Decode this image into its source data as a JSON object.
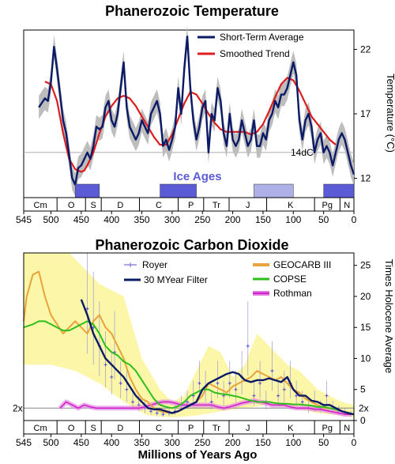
{
  "chart_data": [
    {
      "type": "line",
      "title": "Phanerozoic Temperature",
      "xlabel": "",
      "ylabel": "Temperature (°C)",
      "xlim": [
        545,
        0
      ],
      "ylim": [
        10.5,
        23.5
      ],
      "x_ticks": [
        "545",
        "500",
        "450",
        "400",
        "350",
        "300",
        "250",
        "200",
        "150",
        "100",
        "50",
        "0"
      ],
      "y_ticks": [
        "12",
        "17",
        "22"
      ],
      "reference_line": {
        "value": 14,
        "label": "14dC"
      },
      "annotation": "Ice Ages",
      "ice_ages": [
        [
          460,
          420
        ],
        [
          320,
          260
        ],
        [
          165,
          100
        ],
        [
          50,
          0
        ]
      ],
      "ice_age_shades": [
        "dark",
        "dark",
        "light",
        "dark"
      ],
      "periods": [
        {
          "label": "Cm",
          "start": 545,
          "end": 490
        },
        {
          "label": "O",
          "start": 490,
          "end": 443
        },
        {
          "label": "S",
          "start": 443,
          "end": 417
        },
        {
          "label": "D",
          "start": 417,
          "end": 354
        },
        {
          "label": "C",
          "start": 354,
          "end": 290
        },
        {
          "label": "P",
          "start": 290,
          "end": 248
        },
        {
          "label": "Tr",
          "start": 248,
          "end": 206
        },
        {
          "label": "J",
          "start": 206,
          "end": 144
        },
        {
          "label": "K",
          "start": 144,
          "end": 65
        },
        {
          "label": "Pg",
          "start": 65,
          "end": 23
        },
        {
          "label": "N",
          "start": 23,
          "end": 0
        }
      ],
      "series": [
        {
          "name": "Short-Term Average",
          "color": "#0b1a66",
          "x": [
            520,
            510,
            505,
            500,
            495,
            490,
            485,
            480,
            475,
            470,
            465,
            460,
            455,
            450,
            445,
            440,
            435,
            430,
            425,
            420,
            415,
            410,
            405,
            400,
            395,
            390,
            385,
            380,
            375,
            370,
            365,
            360,
            355,
            350,
            345,
            340,
            335,
            330,
            325,
            320,
            315,
            310,
            305,
            300,
            295,
            290,
            285,
            280,
            275,
            270,
            265,
            260,
            255,
            250,
            245,
            240,
            235,
            230,
            225,
            220,
            215,
            210,
            205,
            200,
            195,
            190,
            185,
            180,
            175,
            170,
            165,
            160,
            155,
            150,
            145,
            140,
            135,
            130,
            125,
            120,
            115,
            110,
            105,
            100,
            95,
            90,
            85,
            80,
            75,
            70,
            65,
            60,
            55,
            50,
            45,
            40,
            35,
            30,
            25,
            20,
            15,
            10,
            5,
            0
          ],
          "values": [
            17.5,
            18.2,
            18.0,
            19.5,
            22.2,
            20.5,
            18.5,
            16.5,
            15.5,
            13.8,
            12.0,
            11.5,
            12.8,
            13.0,
            13.5,
            14.0,
            13.5,
            14.5,
            16.0,
            15.8,
            16.0,
            17.5,
            18.0,
            16.5,
            16.0,
            17.0,
            19.0,
            21.0,
            17.5,
            16.0,
            15.5,
            15.0,
            15.5,
            16.5,
            16.0,
            15.5,
            17.0,
            17.5,
            18.0,
            17.0,
            14.5,
            15.0,
            14.2,
            15.0,
            16.0,
            19.0,
            17.0,
            20.5,
            23.0,
            19.0,
            16.5,
            15.0,
            16.0,
            17.5,
            18.0,
            14.0,
            17.0,
            16.5,
            19.0,
            18.0,
            15.5,
            14.5,
            17.0,
            15.0,
            14.5,
            15.0,
            16.5,
            15.5,
            14.5,
            15.0,
            16.5,
            14.5,
            14.5,
            15.5,
            15.0,
            16.5,
            17.0,
            18.0,
            17.5,
            18.5,
            18.5,
            19.0,
            20.0,
            21.0,
            20.0,
            16.5,
            15.0,
            16.5,
            17.0,
            16.0,
            14.0,
            15.0,
            15.5,
            14.0,
            14.5,
            14.0,
            13.0,
            14.0,
            15.0,
            15.5,
            15.0,
            14.0,
            13.0,
            12.3
          ]
        },
        {
          "name": "Smoothed Trend",
          "color": "#dd1c1c",
          "x": [
            510,
            500,
            490,
            480,
            470,
            460,
            450,
            445,
            440,
            430,
            420,
            410,
            400,
            390,
            380,
            370,
            360,
            350,
            340,
            330,
            320,
            310,
            300,
            290,
            280,
            270,
            260,
            250,
            240,
            230,
            220,
            210,
            200,
            190,
            180,
            170,
            160,
            150,
            140,
            130,
            120,
            110,
            100,
            90,
            80,
            70,
            60,
            50,
            40,
            30
          ],
          "values": [
            19.5,
            19.3,
            18.0,
            15.5,
            13.5,
            12.7,
            12.5,
            12.6,
            13.0,
            14.0,
            15.5,
            16.8,
            17.6,
            18.2,
            18.4,
            18.2,
            17.6,
            16.8,
            16.0,
            15.2,
            14.6,
            14.6,
            15.4,
            16.6,
            17.8,
            18.7,
            18.5,
            17.8,
            17.0,
            16.3,
            15.8,
            15.6,
            15.6,
            15.6,
            15.6,
            15.4,
            15.6,
            16.2,
            17.2,
            18.3,
            19.3,
            19.8,
            19.6,
            18.8,
            17.8,
            16.8,
            16.2,
            15.6,
            15.0,
            14.6
          ]
        }
      ],
      "legend": [
        {
          "label": "Short-Term Average",
          "color": "#0b1a66"
        },
        {
          "label": "Smoothed Trend",
          "color": "#dd1c1c"
        }
      ],
      "legend_position": "top-right"
    },
    {
      "type": "line",
      "title": "Phanerozoic Carbon Dioxide",
      "xlabel": "Millions of Years Ago",
      "ylabel": "Times Holocene Average",
      "xlim": [
        545,
        0
      ],
      "ylim": [
        0,
        27
      ],
      "x_ticks": [
        "545",
        "500",
        "450",
        "400",
        "350",
        "300",
        "250",
        "200",
        "150",
        "100",
        "50",
        "0"
      ],
      "y_ticks": [
        "0",
        "5",
        "10",
        "15",
        "20",
        "25"
      ],
      "reference_line": {
        "value": 2,
        "label_left": "2x",
        "label_right": "2x"
      },
      "periods": [
        "Cm",
        "O",
        "S",
        "D",
        "C",
        "P",
        "Tr",
        "J",
        "K",
        "Pg",
        "N"
      ],
      "series": [
        {
          "name": "Royer",
          "color": "#5b4fd6",
          "marker": "plus",
          "x": [
            440,
            430,
            420,
            410,
            400,
            395,
            385,
            375,
            365,
            355,
            345,
            335,
            325,
            315,
            305,
            295,
            285,
            275,
            265,
            255,
            245,
            235,
            225,
            215,
            205,
            195,
            185,
            175,
            165,
            155,
            145,
            135,
            125,
            115,
            105,
            95,
            85,
            75,
            65,
            55,
            45,
            35,
            25,
            15,
            5
          ],
          "values": [
            18,
            15,
            12,
            9,
            7,
            11,
            6,
            5,
            3,
            2.5,
            2,
            1.5,
            1.2,
            1.0,
            1.2,
            1.5,
            2.5,
            3,
            4,
            6,
            5,
            3,
            6,
            4,
            6,
            5,
            7,
            12,
            4,
            6,
            3,
            8,
            4,
            5,
            6,
            4,
            3,
            2,
            3,
            2,
            4,
            2,
            1.5,
            1.2,
            1
          ]
        },
        {
          "name": "30 MYear Filter",
          "color": "#0b1a66",
          "x": [
            450,
            440,
            430,
            420,
            410,
            400,
            390,
            380,
            370,
            360,
            350,
            340,
            330,
            320,
            310,
            300,
            290,
            280,
            270,
            260,
            250,
            240,
            230,
            220,
            210,
            200,
            190,
            180,
            170,
            160,
            150,
            140,
            130,
            120,
            110,
            100,
            90,
            80,
            70,
            60,
            50,
            40,
            30,
            20,
            10,
            0
          ],
          "values": [
            19.5,
            17,
            14,
            12,
            10,
            9,
            8,
            7,
            5.5,
            4,
            3,
            2,
            1.8,
            1.8,
            1.5,
            1.2,
            1.5,
            2,
            2.5,
            3,
            5,
            6,
            6.5,
            7,
            7.5,
            7.8,
            7.5,
            6.5,
            6.2,
            6.5,
            6.5,
            6.8,
            6.5,
            6.2,
            7,
            5,
            4,
            4,
            3.2,
            3,
            2.5,
            2.5,
            2,
            1.5,
            1.2,
            1
          ]
        },
        {
          "name": "GEOCARB III",
          "color": "#e8a33c",
          "x": [
            545,
            540,
            530,
            520,
            510,
            500,
            490,
            480,
            470,
            460,
            450,
            440,
            430,
            420,
            410,
            400,
            390,
            380,
            370,
            360,
            350,
            340,
            330,
            320,
            310,
            300,
            290,
            280,
            270,
            260,
            250,
            240,
            230,
            220,
            210,
            200,
            190,
            180,
            170,
            160,
            150,
            140,
            130,
            120,
            110,
            100,
            90,
            80,
            70,
            60,
            50,
            40,
            30,
            20,
            10,
            0
          ],
          "values": [
            16,
            20,
            23.5,
            24,
            20,
            17,
            15.5,
            14,
            15,
            16,
            15,
            14,
            16,
            17,
            15,
            14,
            12,
            10,
            7,
            5,
            3.5,
            3,
            2,
            1.5,
            1.3,
            1.2,
            1.5,
            2,
            2.5,
            3,
            4,
            6,
            5.5,
            5,
            4.5,
            5.5,
            6,
            6.5,
            7,
            8,
            7.5,
            7,
            6.5,
            7,
            6,
            5,
            4.5,
            3.5,
            3,
            2.5,
            2,
            2,
            1.8,
            1.5,
            1.2,
            1
          ]
        },
        {
          "name": "COPSE",
          "color": "#2fbf1c",
          "x": [
            545,
            530,
            520,
            510,
            500,
            490,
            480,
            470,
            460,
            450,
            440,
            430,
            420,
            410,
            400,
            390,
            380,
            370,
            360,
            350,
            340,
            330,
            320,
            310,
            300,
            290,
            280,
            270,
            260,
            250,
            240,
            230,
            220,
            210,
            200,
            190,
            180,
            170,
            160,
            150,
            140,
            130,
            120,
            110,
            100,
            90,
            80,
            70,
            60,
            50,
            40,
            30,
            20,
            10,
            0
          ],
          "values": [
            15,
            15.5,
            16,
            16,
            15.5,
            15,
            14.5,
            14.5,
            15,
            15.5,
            16,
            15.5,
            14,
            12,
            11,
            10.5,
            9.5,
            9,
            8,
            6.5,
            5,
            3.5,
            2.5,
            2.2,
            2,
            2.3,
            3,
            4,
            4.5,
            5,
            5,
            4.5,
            4.3,
            4.2,
            4,
            3.8,
            3.5,
            3.2,
            3,
            3,
            3,
            2.8,
            2.7,
            2.7,
            2.6,
            2.6,
            2.5,
            2.4,
            2.2,
            2.2,
            2,
            1.8,
            1.5,
            1.3,
            1
          ]
        },
        {
          "name": "Rothman",
          "color": "#d022c9",
          "x": [
            485,
            475,
            465,
            455,
            445,
            435,
            425,
            415,
            405,
            395,
            385,
            375,
            365,
            355,
            345,
            335,
            325,
            315,
            305,
            295,
            285,
            275,
            265,
            255,
            245,
            235,
            225,
            215,
            205,
            195,
            185,
            175,
            165,
            155,
            145,
            135,
            125,
            115,
            105,
            95,
            85,
            75,
            65,
            55,
            45,
            35,
            25,
            15,
            5
          ],
          "values": [
            2,
            3,
            2.5,
            2,
            2.5,
            2.2,
            2,
            2,
            2,
            2,
            2,
            2,
            2,
            2,
            2.2,
            2.5,
            2.8,
            3,
            3,
            2.8,
            2.5,
            2.5,
            2.5,
            2.5,
            2.5,
            2.5,
            2.2,
            2,
            2.2,
            2.5,
            2.8,
            3,
            3.2,
            3,
            2.8,
            2.5,
            2.5,
            2.5,
            2.2,
            2,
            2,
            2,
            1.8,
            1.8,
            1.6,
            1.4,
            1.2,
            1.0,
            1.0
          ]
        }
      ],
      "legend": [
        {
          "label": "Royer",
          "color": "#5b4fd6"
        },
        {
          "label": "30 MYear Filter",
          "color": "#0b1a66"
        },
        {
          "label": "GEOCARB III",
          "color": "#e8a33c"
        },
        {
          "label": "COPSE",
          "color": "#2fbf1c"
        },
        {
          "label": "Rothman",
          "color": "#d022c9"
        }
      ],
      "legend_position": "top"
    }
  ]
}
